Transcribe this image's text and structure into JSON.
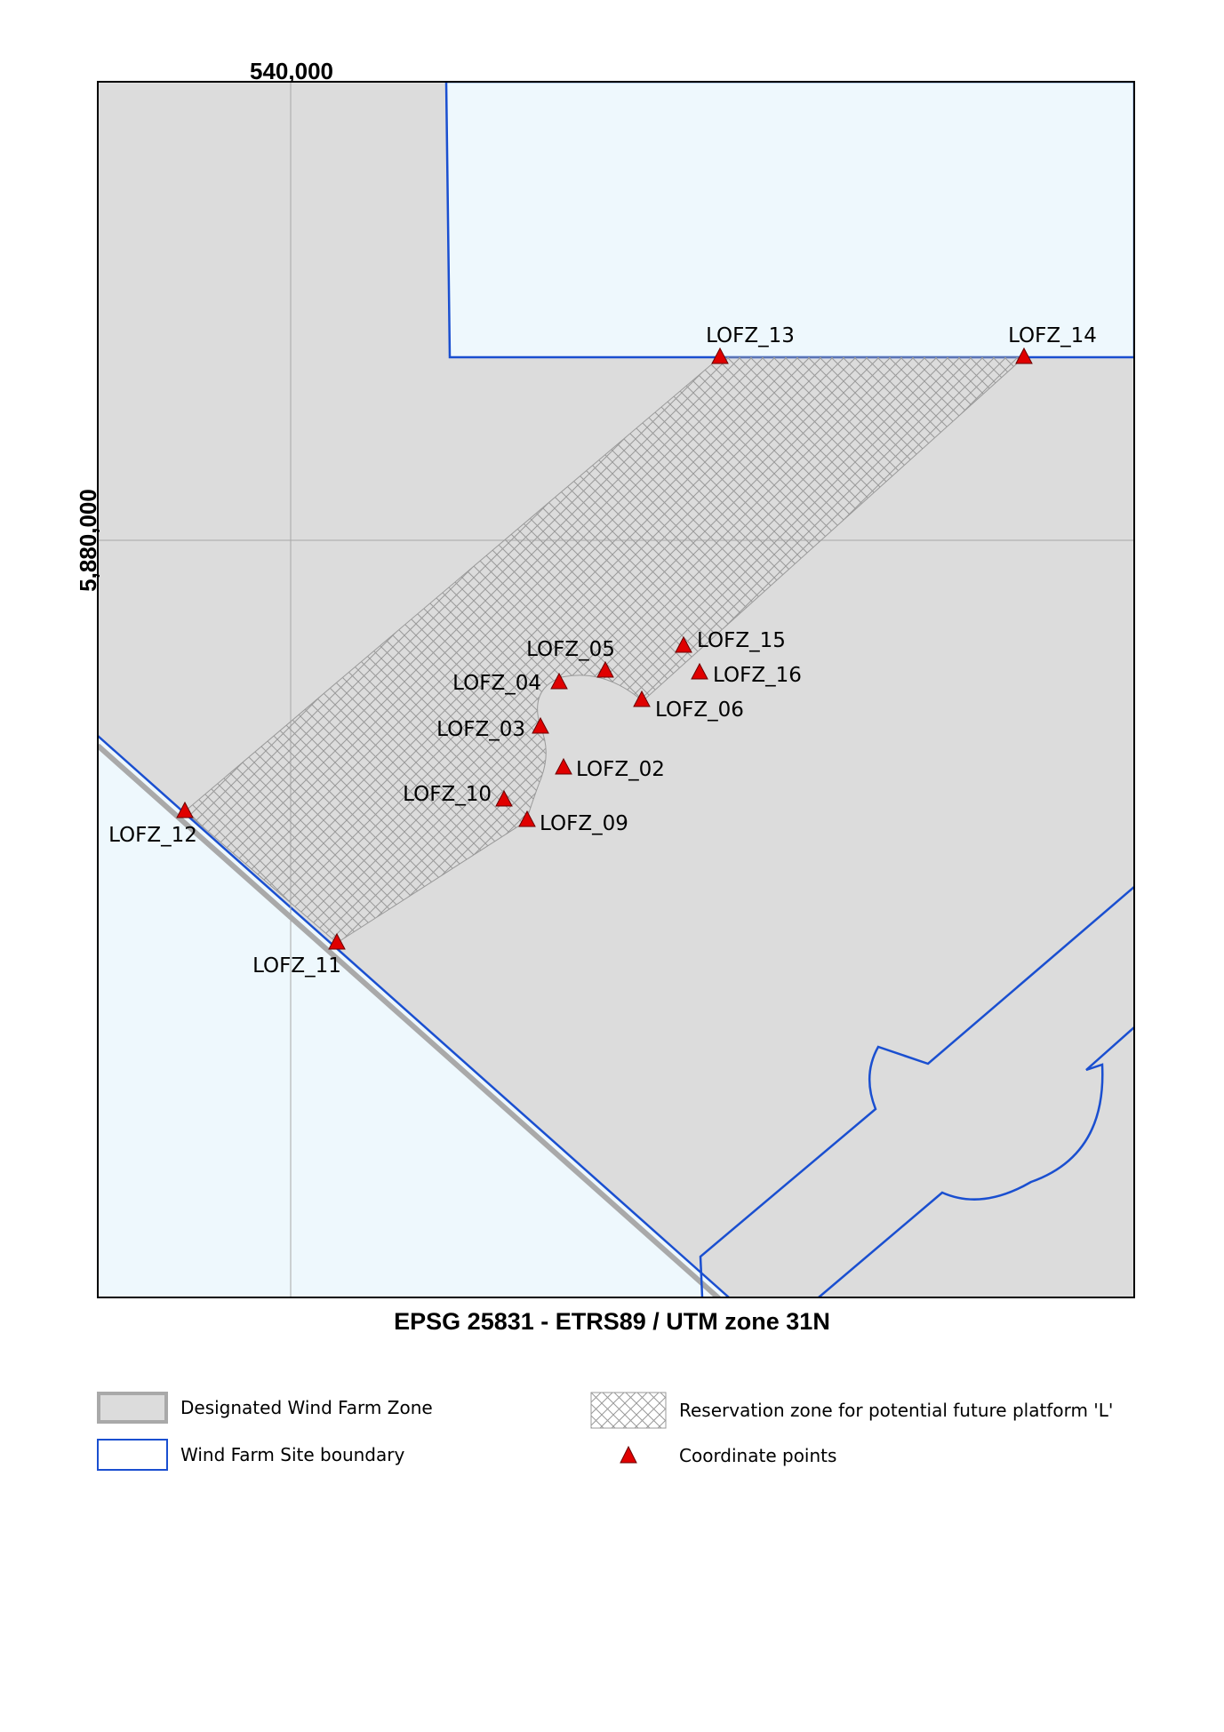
{
  "map": {
    "axis_x_label": "540,000",
    "axis_y_label": "5,880,000",
    "crs_label": "EPSG 25831 - ETRS89 / UTM zone 31N",
    "colors": {
      "zone_fill": "#dcdcdc",
      "site_fill": "#eef8fd",
      "boundary": "#1a4fd0",
      "marker": "#e00000",
      "hatch": "#9a9a9a"
    },
    "points": [
      {
        "id": "LOFZ_02",
        "label": "LOFZ_02"
      },
      {
        "id": "LOFZ_03",
        "label": "LOFZ_03"
      },
      {
        "id": "LOFZ_04",
        "label": "LOFZ_04"
      },
      {
        "id": "LOFZ_05",
        "label": "LOFZ_05"
      },
      {
        "id": "LOFZ_06",
        "label": "LOFZ_06"
      },
      {
        "id": "LOFZ_09",
        "label": "LOFZ_09"
      },
      {
        "id": "LOFZ_10",
        "label": "LOFZ_10"
      },
      {
        "id": "LOFZ_11",
        "label": "LOFZ_11"
      },
      {
        "id": "LOFZ_12",
        "label": "LOFZ_12"
      },
      {
        "id": "LOFZ_13",
        "label": "LOFZ_13"
      },
      {
        "id": "LOFZ_14",
        "label": "LOFZ_14"
      },
      {
        "id": "LOFZ_15",
        "label": "LOFZ_15"
      },
      {
        "id": "LOFZ_16",
        "label": "LOFZ_16"
      }
    ]
  },
  "legend": {
    "zone": "Designated Wind Farm Zone",
    "site": "Wind Farm Site boundary",
    "reservation": "Reservation zone for potential future platform 'L'",
    "points": "Coordinate points"
  }
}
